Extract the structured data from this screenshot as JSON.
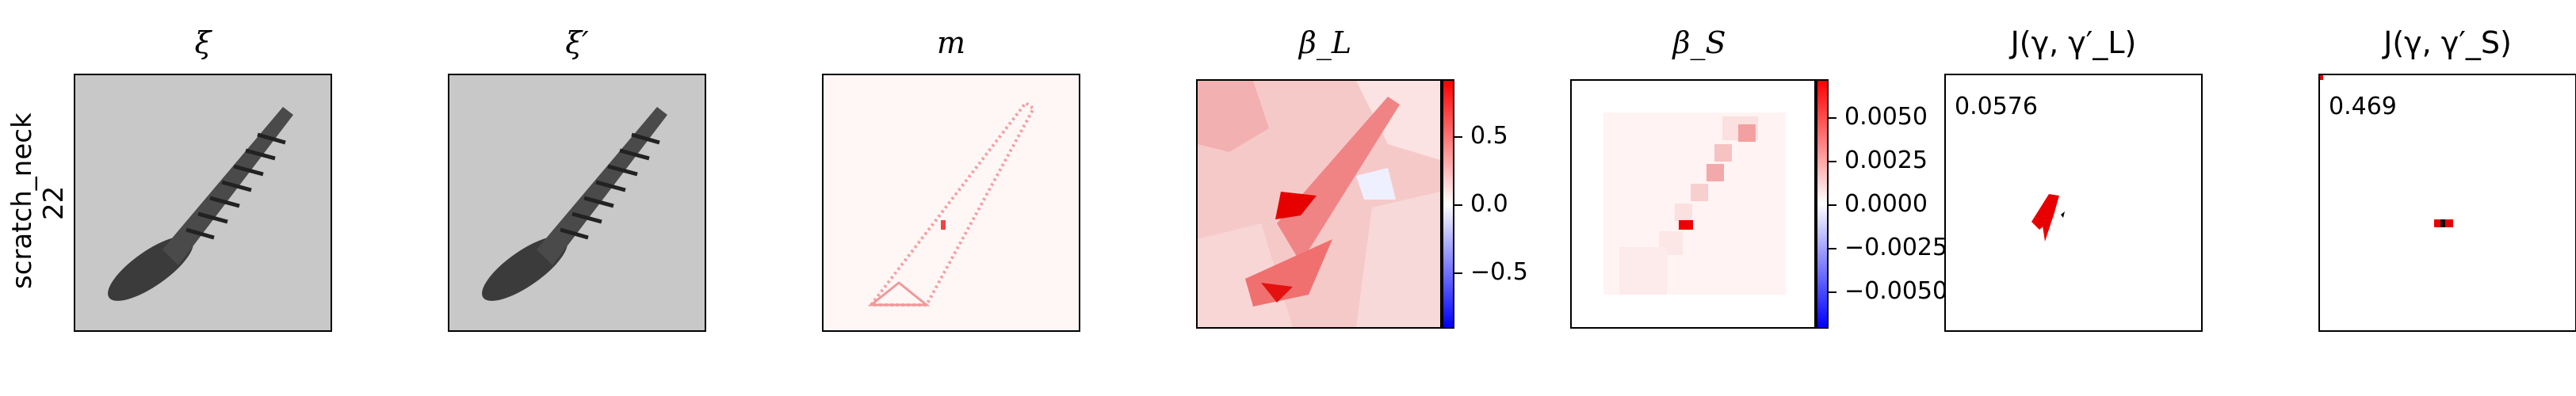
{
  "row": {
    "label_line1": "scratch_neck",
    "label_line2": "22"
  },
  "panels": [
    {
      "title": "ξ"
    },
    {
      "title": "ξ′"
    },
    {
      "title": "m"
    },
    {
      "title": "β_L"
    },
    {
      "title": "β_S"
    },
    {
      "title": "J(γ, γ′_L)"
    },
    {
      "title": "J(γ, γ′_S)"
    }
  ],
  "colorbars": {
    "beta_L": {
      "ticks": [
        "0.5",
        "0.0",
        "−0.5"
      ]
    },
    "beta_S": {
      "ticks": [
        "0.0050",
        "0.0025",
        "0.0000",
        "−0.0025",
        "−0.0050"
      ]
    }
  },
  "scores": {
    "jaccard_L": "0.0576",
    "jaccard_S": "0.469"
  },
  "colors": {
    "positive": "#ff0000",
    "negative": "#0000ff",
    "neutral": "#ffffff",
    "screw": "#3a3a3a",
    "background_gray": "#c8c8c8"
  }
}
